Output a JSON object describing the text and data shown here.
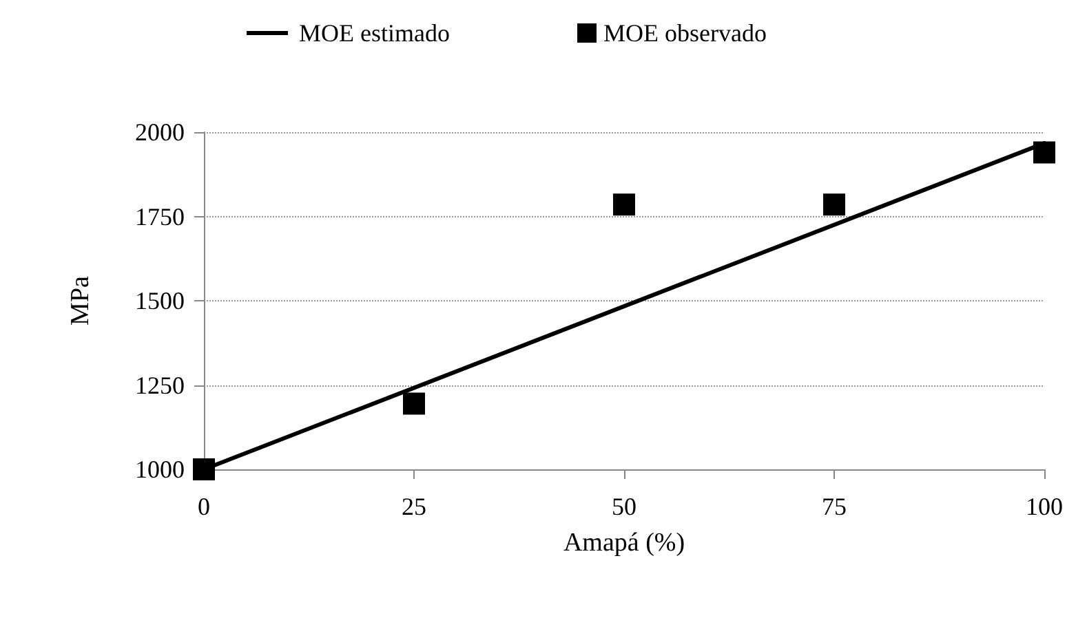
{
  "chart_data": {
    "type": "scatter",
    "xlabel": "Amapá (%)",
    "ylabel": "MPa",
    "series": [
      {
        "name": "MOE estimado",
        "type": "line",
        "color": "#000000",
        "x": [
          0,
          100
        ],
        "values": [
          1000,
          1967
        ],
        "line_style": "solid",
        "marker": "none"
      },
      {
        "name": "MOE observado",
        "color": "#000000",
        "x": [
          0,
          25,
          50,
          75,
          100
        ],
        "values": [
          1000,
          1195,
          1785,
          1785,
          1940
        ],
        "marker": "square"
      }
    ],
    "xlim": [
      0,
      100
    ],
    "xticks": [
      0,
      25,
      50,
      75,
      100
    ],
    "ylim": [
      1000,
      2000
    ],
    "yticks": [
      1000,
      1250,
      1500,
      1750,
      2000
    ],
    "grid": "y",
    "legend": "top"
  }
}
